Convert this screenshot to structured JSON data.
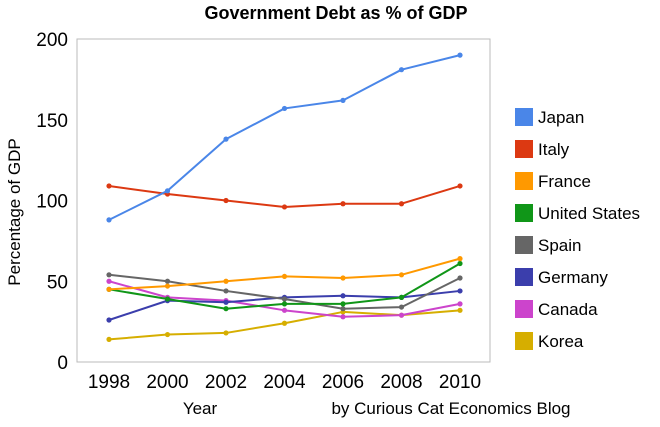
{
  "chart_data": {
    "type": "line",
    "title": "Government Debt as % of GDP",
    "xlabel": "Year",
    "ylabel": "Percentage of GDP",
    "credit": "by Curious Cat Economics Blog",
    "x": [
      1998,
      2000,
      2002,
      2004,
      2006,
      2008,
      2010
    ],
    "x_tick_labels": [
      "1998",
      "2000",
      "2002",
      "2004",
      "2006",
      "2008",
      "2010"
    ],
    "y_ticks": [
      0,
      50,
      100,
      150,
      200
    ],
    "y_tick_labels": [
      "0",
      "50",
      "100",
      "150",
      "200"
    ],
    "ylim": [
      0,
      200
    ],
    "grid": false,
    "legend_position": "right",
    "series": [
      {
        "name": "Japan",
        "color": "#4a86e8",
        "values": [
          88,
          106,
          138,
          157,
          162,
          181,
          190
        ]
      },
      {
        "name": "Italy",
        "color": "#dc3912",
        "values": [
          109,
          104,
          100,
          96,
          98,
          98,
          109
        ]
      },
      {
        "name": "France",
        "color": "#ff9900",
        "values": [
          45,
          47,
          50,
          53,
          52,
          54,
          64
        ]
      },
      {
        "name": "United States",
        "color": "#109618",
        "values": [
          45,
          39,
          33,
          36,
          36,
          40,
          61
        ]
      },
      {
        "name": "Spain",
        "color": "#666666",
        "values": [
          54,
          50,
          44,
          39,
          33,
          34,
          52
        ]
      },
      {
        "name": "Germany",
        "color": "#3b3eac",
        "values": [
          26,
          38,
          37,
          40,
          41,
          40,
          44
        ]
      },
      {
        "name": "Canada",
        "color": "#cc44cc",
        "values": [
          50,
          40,
          38,
          32,
          28,
          29,
          36
        ]
      },
      {
        "name": "Korea",
        "color": "#d6ae00",
        "values": [
          14,
          17,
          18,
          24,
          31,
          29,
          32
        ]
      }
    ]
  }
}
